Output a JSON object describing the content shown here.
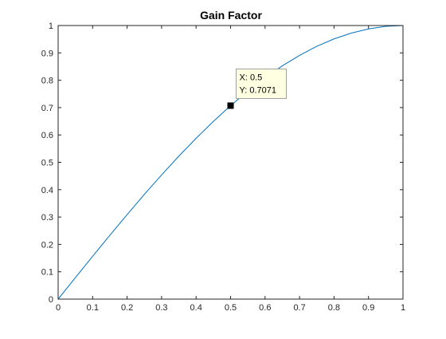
{
  "chart_data": {
    "type": "line",
    "title": "Gain Factor",
    "xlabel": "",
    "ylabel": "",
    "xlim": [
      0,
      1
    ],
    "ylim": [
      0,
      1
    ],
    "xticks": [
      0,
      0.1,
      0.2,
      0.3,
      0.4,
      0.5,
      0.6,
      0.7,
      0.8,
      0.9,
      1
    ],
    "yticks": [
      0,
      0.1,
      0.2,
      0.3,
      0.4,
      0.5,
      0.6,
      0.7,
      0.8,
      0.9,
      1
    ],
    "xtick_labels": [
      "0",
      "0.1",
      "0.2",
      "0.3",
      "0.4",
      "0.5",
      "0.6",
      "0.7",
      "0.8",
      "0.9",
      "1"
    ],
    "ytick_labels": [
      "0",
      "0.1",
      "0.2",
      "0.3",
      "0.4",
      "0.5",
      "0.6",
      "0.7",
      "0.8",
      "0.9",
      "1"
    ],
    "grid": false,
    "series": [
      {
        "color": "#0072bd",
        "x": [
          0,
          0.05,
          0.1,
          0.15,
          0.2,
          0.25,
          0.3,
          0.35,
          0.4,
          0.45,
          0.5,
          0.55,
          0.6,
          0.65,
          0.7,
          0.75,
          0.8,
          0.85,
          0.9,
          0.95,
          1
        ],
        "y": [
          0,
          0.0785,
          0.1564,
          0.2334,
          0.309,
          0.3827,
          0.454,
          0.5225,
          0.5878,
          0.6494,
          0.7071,
          0.7604,
          0.809,
          0.8526,
          0.891,
          0.9239,
          0.9511,
          0.9724,
          0.9877,
          0.9969,
          1
        ]
      }
    ],
    "datatip": {
      "x": 0.5,
      "y": 0.7071,
      "x_text": "X: 0.5",
      "y_text": "Y: 0.7071"
    }
  }
}
